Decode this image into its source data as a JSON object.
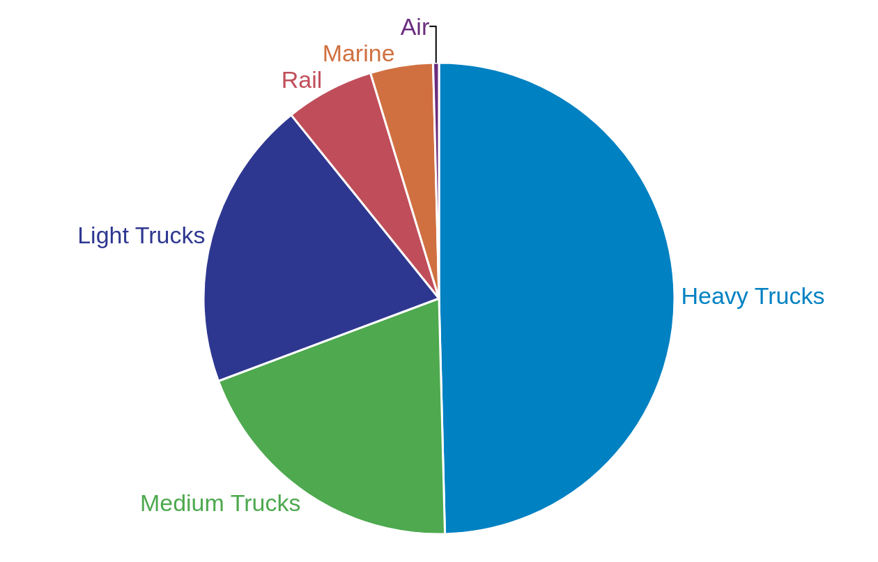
{
  "chart_data": {
    "type": "pie",
    "categories": [
      "Heavy Trucks",
      "Medium Trucks",
      "Light Trucks",
      "Rail",
      "Marine",
      "Air"
    ],
    "values": [
      49.6,
      19.7,
      19.9,
      6.1,
      4.3,
      0.4
    ],
    "colors": [
      "#0081c2",
      "#4ea94f",
      "#2e3790",
      "#c04e5a",
      "#d07040",
      "#6a2c7d"
    ],
    "legend": false
  }
}
